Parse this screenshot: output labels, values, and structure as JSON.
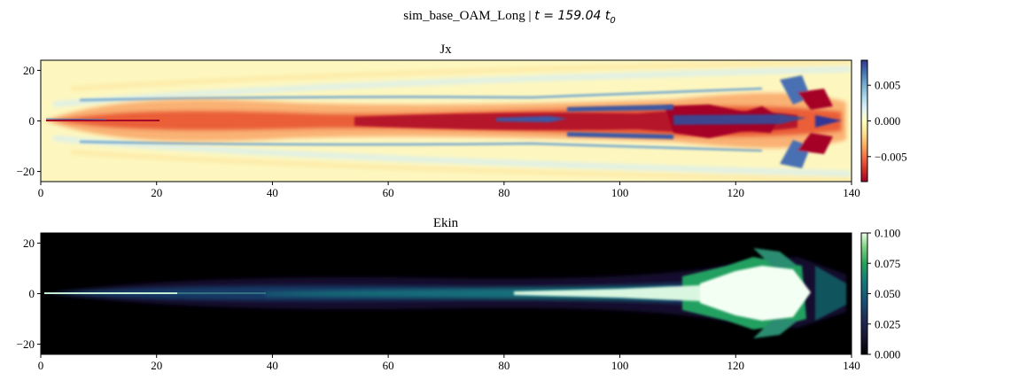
{
  "figure": {
    "title_prefix": "sim_base_OAM_Long | ",
    "title_math": "t = 159.04 t",
    "title_sub": "0"
  },
  "chart_data": [
    {
      "type": "heatmap",
      "title": "Jx",
      "xlabel": "",
      "ylabel": "",
      "xlim": [
        0,
        140
      ],
      "ylim": [
        -24,
        24
      ],
      "x_ticks": [
        0,
        20,
        40,
        60,
        80,
        100,
        120,
        140
      ],
      "y_ticks": [
        -20,
        0,
        20
      ],
      "x_tick_labels": [
        "0",
        "20",
        "40",
        "60",
        "80",
        "100",
        "120",
        "140"
      ],
      "y_tick_labels": [
        "−20",
        "0",
        "20"
      ],
      "colormap": "RdYlBu",
      "colorbar": {
        "vmin": -0.0085,
        "vmax": 0.0085,
        "ticks": [
          -0.005,
          0.0,
          0.005
        ],
        "tick_labels": [
          "−0.005",
          "0.000",
          "0.005"
        ]
      }
    },
    {
      "type": "heatmap",
      "title": "Ekin",
      "xlabel": "",
      "ylabel": "",
      "xlim": [
        0,
        140
      ],
      "ylim": [
        -24,
        24
      ],
      "x_ticks": [
        0,
        20,
        40,
        60,
        80,
        100,
        120,
        140
      ],
      "y_ticks": [
        -20,
        0,
        20
      ],
      "x_tick_labels": [
        "0",
        "20",
        "40",
        "60",
        "80",
        "100",
        "120",
        "140"
      ],
      "y_tick_labels": [
        "−20",
        "0",
        "20"
      ],
      "colormap": "cubehelix-green",
      "colorbar": {
        "vmin": 0.0,
        "vmax": 0.1,
        "ticks": [
          0.0,
          0.025,
          0.05,
          0.075,
          0.1
        ],
        "tick_labels": [
          "0.000",
          "0.025",
          "0.050",
          "0.075",
          "0.100"
        ]
      }
    }
  ]
}
